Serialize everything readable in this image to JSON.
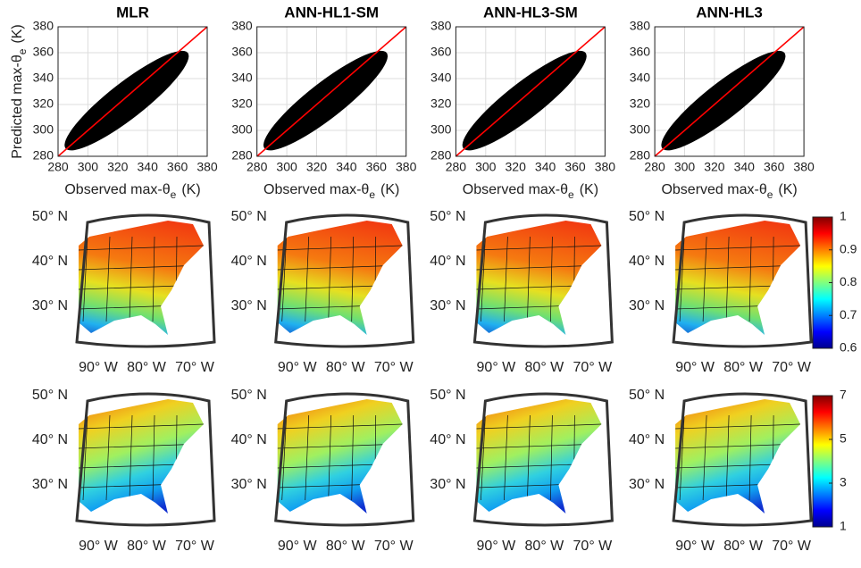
{
  "chart_data": [
    {
      "type": "scatter",
      "title": "MLR",
      "xlabel": {
        "text": "Observed max-θ",
        "subscript": "e",
        "unit": "(K)"
      },
      "ylabel": {
        "text": "Predicted max-θ",
        "subscript": "e",
        "unit": "(K)"
      },
      "xlim": [
        280,
        380
      ],
      "ylim": [
        280,
        380
      ],
      "xticks": [
        280,
        300,
        320,
        340,
        360,
        380
      ],
      "yticks": [
        280,
        300,
        320,
        340,
        360,
        380
      ],
      "grid": true,
      "point_color": "#000000",
      "identity_line_color": "#ff0000"
    },
    {
      "type": "scatter",
      "title": "ANN-HL1-SM",
      "xlabel": {
        "text": "Observed max-θ",
        "subscript": "e",
        "unit": "(K)"
      },
      "xlim": [
        280,
        380
      ],
      "ylim": [
        280,
        380
      ],
      "xticks": [
        280,
        300,
        320,
        340,
        360,
        380
      ],
      "yticks": [
        280,
        300,
        320,
        340,
        360,
        380
      ],
      "grid": true,
      "point_color": "#000000",
      "identity_line_color": "#ff0000"
    },
    {
      "type": "scatter",
      "title": "ANN-HL3-SM",
      "xlabel": {
        "text": "Observed max-θ",
        "subscript": "e",
        "unit": "(K)"
      },
      "xlim": [
        280,
        380
      ],
      "ylim": [
        280,
        380
      ],
      "xticks": [
        280,
        300,
        320,
        340,
        360,
        380
      ],
      "yticks": [
        280,
        300,
        320,
        340,
        360,
        380
      ],
      "grid": true,
      "point_color": "#000000",
      "identity_line_color": "#ff0000"
    },
    {
      "type": "scatter",
      "title": "ANN-HL3",
      "xlabel": {
        "text": "Observed max-θ",
        "subscript": "e",
        "unit": "(K)"
      },
      "xlim": [
        280,
        380
      ],
      "ylim": [
        280,
        380
      ],
      "xticks": [
        280,
        300,
        320,
        340,
        360,
        380
      ],
      "yticks": [
        280,
        300,
        320,
        340,
        360,
        380
      ],
      "grid": true,
      "point_color": "#000000",
      "identity_line_color": "#ff0000"
    }
  ],
  "maps": {
    "lat_labels": [
      "50° N",
      "40° N",
      "30° N"
    ],
    "lon_labels": [
      "90° W",
      "80° W",
      "70° W"
    ],
    "rows": [
      {
        "colorbar": {
          "lim": [
            0.6,
            1
          ],
          "ticks": [
            0.6,
            0.7,
            0.8,
            0.9,
            1
          ]
        }
      },
      {
        "colorbar": {
          "lim": [
            1,
            7
          ],
          "ticks": [
            1,
            3,
            5,
            7
          ]
        }
      }
    ]
  }
}
